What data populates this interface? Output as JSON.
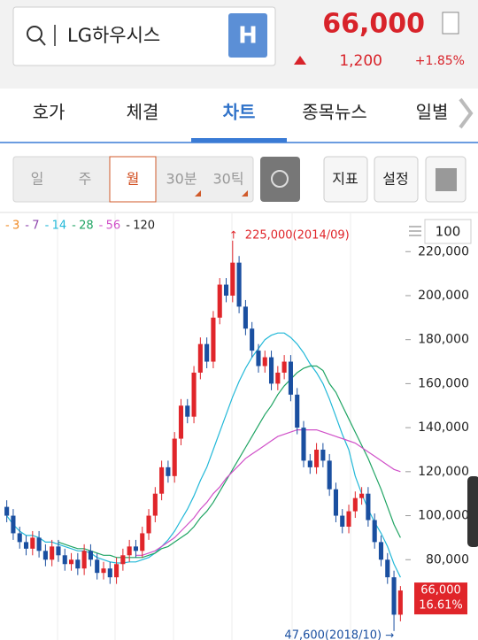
{
  "header": {
    "search": "LG하우시스",
    "badge": "H",
    "price": "66,000",
    "change": "1,200",
    "change_pct": "+1.85%"
  },
  "tabs": [
    "호가",
    "체결",
    "차트",
    "종목뉴스",
    "일별"
  ],
  "periods": [
    "일",
    "주",
    "월",
    "30분",
    "30틱"
  ],
  "buttons": [
    "지표",
    "설정"
  ],
  "zoom": "100",
  "chart_data": {
    "type": "candlestick",
    "legend": [
      {
        "label": "3",
        "color": "#f08a24"
      },
      {
        "label": "7",
        "color": "#8e44ad"
      },
      {
        "label": "14",
        "color": "#22b8d8"
      },
      {
        "label": "28",
        "color": "#1fa463"
      },
      {
        "label": "56",
        "color": "#d050c8"
      },
      {
        "label": "120",
        "color": "#222222"
      }
    ],
    "open": [
      104000,
      100000,
      92000,
      88000,
      85000,
      90000,
      84000,
      80000,
      86000,
      82000,
      78000,
      80000,
      76000,
      84000,
      80000,
      74000,
      76000,
      72000,
      78000,
      82000,
      86000,
      84000,
      92000,
      100000,
      110000,
      122000,
      118000,
      135000,
      150000,
      145000,
      165000,
      178000,
      170000,
      190000,
      205000,
      200000,
      215000,
      195000,
      185000,
      175000,
      168000,
      172000,
      160000,
      165000,
      170000,
      155000,
      140000,
      125000,
      122000,
      130000,
      125000,
      112000,
      100000,
      95000,
      102000,
      108000,
      110000,
      98000,
      88000,
      80000,
      72000,
      55000
    ],
    "high": [
      107000,
      103000,
      95000,
      91000,
      93000,
      93000,
      87000,
      89000,
      89000,
      85000,
      83000,
      83000,
      87000,
      87000,
      83000,
      79000,
      79000,
      81000,
      85000,
      89000,
      89000,
      95000,
      103000,
      113000,
      125000,
      125000,
      138000,
      153000,
      153000,
      168000,
      181000,
      181000,
      193000,
      208000,
      208000,
      225000,
      218000,
      198000,
      188000,
      178000,
      175000,
      175000,
      168000,
      173000,
      173000,
      158000,
      143000,
      128000,
      133000,
      133000,
      128000,
      115000,
      103000,
      105000,
      111000,
      113000,
      113000,
      101000,
      91000,
      83000,
      75000,
      68000
    ],
    "low": [
      97000,
      89000,
      85000,
      82000,
      82000,
      81000,
      77000,
      77000,
      79000,
      75000,
      75000,
      73000,
      73000,
      77000,
      71000,
      71000,
      69000,
      69000,
      75000,
      79000,
      81000,
      81000,
      89000,
      97000,
      107000,
      115000,
      115000,
      132000,
      142000,
      142000,
      162000,
      167000,
      167000,
      187000,
      197000,
      197000,
      192000,
      182000,
      172000,
      165000,
      165000,
      157000,
      157000,
      162000,
      152000,
      137000,
      122000,
      119000,
      119000,
      122000,
      109000,
      97000,
      92000,
      92000,
      99000,
      105000,
      95000,
      85000,
      77000,
      69000,
      47600,
      52000
    ],
    "close": [
      100000,
      92000,
      88000,
      85000,
      90000,
      84000,
      80000,
      86000,
      82000,
      78000,
      80000,
      76000,
      84000,
      80000,
      74000,
      76000,
      72000,
      78000,
      82000,
      86000,
      84000,
      92000,
      100000,
      110000,
      122000,
      118000,
      135000,
      150000,
      145000,
      165000,
      178000,
      170000,
      190000,
      205000,
      200000,
      215000,
      195000,
      185000,
      175000,
      168000,
      172000,
      160000,
      165000,
      170000,
      155000,
      140000,
      125000,
      122000,
      130000,
      125000,
      112000,
      100000,
      95000,
      102000,
      108000,
      110000,
      98000,
      88000,
      80000,
      72000,
      55000,
      66000
    ],
    "up_color": "#e0252a",
    "down_color": "#1a4fa0",
    "series": [
      {
        "color": "#22b8d8",
        "values": [
          100000,
          96000,
          93000,
          91000,
          91000,
          90000,
          88000,
          88000,
          87000,
          86000,
          85000,
          84000,
          84000,
          83000,
          81000,
          80000,
          79000,
          78500,
          78500,
          79000,
          79000,
          80000,
          81000,
          83000,
          86000,
          89000,
          93000,
          98000,
          103000,
          109000,
          116000,
          122000,
          130000,
          138000,
          146000,
          154000,
          161000,
          167000,
          172000,
          176000,
          180000,
          182000,
          183000,
          183000,
          181000,
          178000,
          174000,
          169000,
          165000,
          160000,
          153000,
          145000,
          137000,
          130000,
          118000,
          110000,
          103000,
          97000,
          92000,
          86000,
          78000,
          72000
        ]
      },
      {
        "color": "#1fa463",
        "values": [
          null,
          null,
          null,
          null,
          null,
          null,
          null,
          null,
          88000,
          87000,
          86000,
          85000,
          85000,
          84000,
          83000,
          82000,
          82000,
          81000,
          81000,
          81000,
          81000,
          81000,
          82000,
          83000,
          85000,
          86000,
          88000,
          90000,
          92000,
          95000,
          99000,
          102000,
          106000,
          111000,
          116000,
          121000,
          126000,
          131000,
          136000,
          141000,
          146000,
          150000,
          155000,
          159000,
          162000,
          165000,
          167000,
          168000,
          168000,
          166000,
          160000,
          156000,
          150000,
          144000,
          138000,
          132000,
          126000,
          119000,
          112000,
          104000,
          96000,
          90000
        ]
      },
      {
        "color": "#d050c8",
        "values": [
          null,
          null,
          null,
          null,
          null,
          null,
          null,
          null,
          null,
          null,
          null,
          null,
          null,
          null,
          null,
          null,
          null,
          null,
          null,
          null,
          82000,
          82000,
          83000,
          84000,
          86000,
          88000,
          90000,
          93000,
          96000,
          99000,
          103000,
          106000,
          110000,
          113000,
          117000,
          120000,
          123000,
          126000,
          128000,
          130000,
          132000,
          134000,
          136000,
          137000,
          138000,
          139000,
          139000,
          139000,
          139000,
          138000,
          137000,
          136000,
          135000,
          134000,
          133000,
          131000,
          129000,
          127000,
          125000,
          123000,
          121000,
          120000
        ]
      }
    ],
    "ylim": [
      43500,
      237400
    ],
    "yticks": [
      {
        "value": 80000,
        "label": "80,000"
      },
      {
        "value": 100000,
        "label": "100,000"
      },
      {
        "value": 120000,
        "label": "120,000"
      },
      {
        "value": 140000,
        "label": "140,000"
      },
      {
        "value": 160000,
        "label": "160,000"
      },
      {
        "value": 180000,
        "label": "180,000"
      },
      {
        "value": 200000,
        "label": "200,000"
      },
      {
        "value": 220000,
        "label": "220,000"
      }
    ],
    "annotations": [
      {
        "text": "225,000(2014/09)",
        "value": 225000,
        "color": "#e0252a"
      },
      {
        "text": "47,600(2018/10)",
        "value": 47600,
        "color": "#1a4fa0"
      }
    ],
    "last_label": {
      "price": {
        "value": 66000,
        "label": "66,000"
      },
      "change": "16.61%"
    }
  }
}
